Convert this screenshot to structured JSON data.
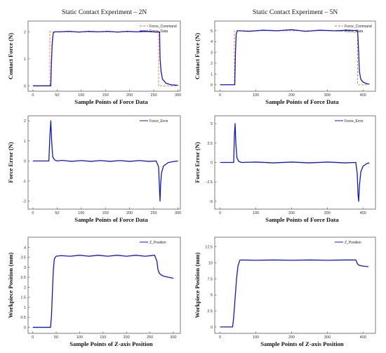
{
  "chart_data": [
    {
      "id": "a",
      "type": "line",
      "title": "Static Contact Experiment – 2N",
      "xlabel": "Sample Points of Force Data",
      "ylabel": "Contact Force (N)",
      "xlim": [
        -10,
        305
      ],
      "ylim": [
        -0.2,
        2.4
      ],
      "xticks": [
        0,
        50,
        100,
        150,
        200,
        250,
        300
      ],
      "yticks": [
        0,
        1,
        2
      ],
      "legend": "top-right",
      "series": [
        {
          "name": "Force_Command",
          "color": "#ff6a2a",
          "dash": true,
          "x": [
            0,
            35,
            35,
            260,
            260,
            300
          ],
          "y": [
            0,
            0,
            2.0,
            2.0,
            0,
            0
          ]
        },
        {
          "name": "Force_Data",
          "color": "#1018c8",
          "x": [
            0,
            37,
            38,
            40,
            42,
            45,
            55,
            75,
            95,
            115,
            135,
            155,
            175,
            195,
            215,
            235,
            255,
            262,
            263,
            265,
            268,
            275,
            285,
            300
          ],
          "y": [
            0,
            0,
            0.7,
            1.6,
            1.95,
            2.0,
            2.0,
            2.02,
            1.99,
            2.02,
            2.0,
            2.02,
            1.99,
            2.02,
            2.0,
            2.02,
            1.99,
            2.0,
            1.0,
            0.55,
            0.25,
            0.1,
            0.04,
            0.02
          ]
        }
      ]
    },
    {
      "id": "b",
      "type": "line",
      "title": "Static Contact Experiment – 5N",
      "xlabel": "Sample Points of Force Data",
      "ylabel": "Contact Force (N)",
      "xlim": [
        -15,
        435
      ],
      "ylim": [
        -0.6,
        5.9
      ],
      "xticks": [
        0,
        100,
        200,
        300,
        400
      ],
      "yticks": [
        0,
        1,
        2,
        3,
        4,
        5
      ],
      "legend": "top-right",
      "series": [
        {
          "name": "Force_Command",
          "color": "#ff6a2a",
          "dash": true,
          "x": [
            0,
            40,
            40,
            385,
            385,
            415
          ],
          "y": [
            0,
            0,
            5.0,
            5.0,
            0,
            0
          ]
        },
        {
          "name": "Force_Data",
          "color": "#1018c8",
          "x": [
            0,
            41,
            43,
            45,
            48,
            55,
            80,
            120,
            160,
            200,
            240,
            280,
            320,
            360,
            385,
            388,
            390,
            394,
            400,
            410,
            418
          ],
          "y": [
            0,
            0,
            3.0,
            4.7,
            5.0,
            5.0,
            4.95,
            5.05,
            5.0,
            5.1,
            4.95,
            5.05,
            5.0,
            5.05,
            5.0,
            3.0,
            1.2,
            0.5,
            0.25,
            0.1,
            0.05
          ]
        }
      ]
    },
    {
      "id": "c",
      "type": "line",
      "title": "",
      "xlabel": "Sample Points of Force Data",
      "ylabel": "Force Error (N)",
      "xlim": [
        -10,
        305
      ],
      "ylim": [
        -2.4,
        2.25
      ],
      "xticks": [
        0,
        50,
        100,
        150,
        200,
        250,
        300
      ],
      "yticks": [
        -2,
        -1,
        0,
        1,
        2
      ],
      "legend": "top-right",
      "series": [
        {
          "name": "Force_Error",
          "color": "#1018c8",
          "x": [
            0,
            33,
            35,
            37,
            39,
            41,
            45,
            50,
            60,
            80,
            100,
            120,
            140,
            160,
            180,
            200,
            220,
            240,
            255,
            260,
            262,
            263,
            264,
            266,
            270,
            280,
            290,
            300
          ],
          "y": [
            0,
            0,
            1.2,
            2.0,
            0.9,
            0.2,
            0.05,
            0,
            0.03,
            -0.02,
            0.02,
            -0.02,
            0.02,
            -0.02,
            0.02,
            -0.02,
            0.02,
            -0.02,
            0,
            -0.3,
            -1.5,
            -2.0,
            -1.2,
            -0.6,
            -0.25,
            -0.08,
            -0.03,
            0
          ]
        }
      ]
    },
    {
      "id": "d",
      "type": "line",
      "title": "",
      "xlabel": "Sample Points of Force Data",
      "ylabel": "Force Error (N)",
      "xlim": [
        -15,
        435
      ],
      "ylim": [
        -6,
        6
      ],
      "xticks": [
        0,
        100,
        200,
        300,
        400
      ],
      "yticks": [
        -5,
        -2.5,
        0,
        2.5,
        5
      ],
      "legend": "top-right",
      "series": [
        {
          "name": "Force_Error",
          "color": "#1018c8",
          "x": [
            0,
            38,
            40,
            42,
            44,
            47,
            52,
            60,
            100,
            150,
            200,
            250,
            300,
            350,
            380,
            384,
            386,
            388,
            390,
            394,
            400,
            410,
            418
          ],
          "y": [
            0,
            0,
            3.5,
            5.0,
            2.5,
            0.6,
            0.15,
            0,
            0.05,
            -0.05,
            0.05,
            -0.05,
            0.05,
            -0.05,
            0,
            -1.5,
            -4.0,
            -5.0,
            -3.0,
            -1.2,
            -0.5,
            -0.15,
            -0.05
          ]
        }
      ]
    },
    {
      "id": "e",
      "type": "line",
      "title": "",
      "xlabel": "Sample Points of Z-axis Position",
      "ylabel": "Workpiece Position (mm)",
      "xlim": [
        -10,
        315
      ],
      "ylim": [
        -0.3,
        4.5
      ],
      "xticks": [
        0,
        50,
        100,
        150,
        200,
        250,
        300
      ],
      "yticks": [
        0,
        0.5,
        1,
        1.5,
        2,
        2.5,
        3,
        3.5,
        4
      ],
      "legend": "top-right",
      "series": [
        {
          "name": "Z_Position",
          "color": "#1018c8",
          "x": [
            0,
            38,
            40,
            42,
            44,
            46,
            48,
            50,
            60,
            80,
            100,
            120,
            140,
            160,
            180,
            200,
            220,
            240,
            260,
            265,
            267,
            270,
            275,
            280,
            290,
            300
          ],
          "y": [
            0,
            0,
            0.6,
            1.8,
            2.9,
            3.4,
            3.5,
            3.55,
            3.58,
            3.55,
            3.6,
            3.55,
            3.6,
            3.55,
            3.6,
            3.55,
            3.6,
            3.55,
            3.6,
            3.3,
            2.9,
            2.7,
            2.6,
            2.55,
            2.5,
            2.45
          ]
        }
      ]
    },
    {
      "id": "f",
      "type": "line",
      "title": "",
      "xlabel": "Sample Points of Z-axis Position",
      "ylabel": "Workpiece Position (mm)",
      "xlim": [
        -15,
        435
      ],
      "ylim": [
        -1,
        14
      ],
      "xticks": [
        0,
        100,
        200,
        300,
        400
      ],
      "yticks": [
        0,
        2.5,
        5,
        7.5,
        10,
        12.5
      ],
      "legend": "top-right",
      "series": [
        {
          "name": "Z_Position",
          "color": "#1018c8",
          "x": [
            0,
            35,
            38,
            42,
            46,
            50,
            55,
            60,
            100,
            150,
            200,
            250,
            300,
            350,
            380,
            385,
            390,
            400,
            415
          ],
          "y": [
            0,
            0,
            1.5,
            4.5,
            7.5,
            9.5,
            10.4,
            10.45,
            10.4,
            10.45,
            10.4,
            10.45,
            10.4,
            10.45,
            10.45,
            9.8,
            9.6,
            9.5,
            9.4
          ]
        }
      ]
    }
  ]
}
